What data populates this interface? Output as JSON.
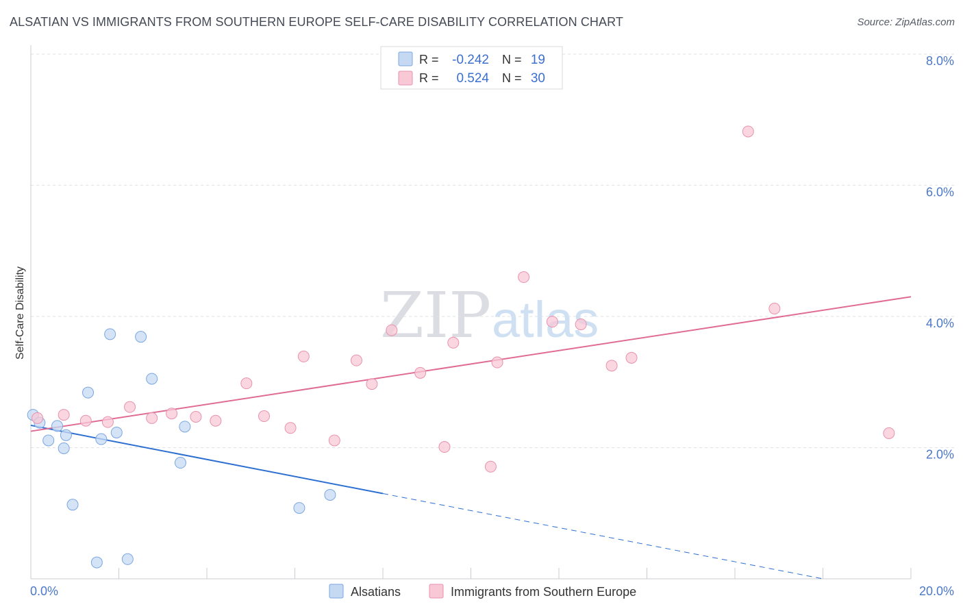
{
  "chart_data": {
    "type": "scatter",
    "title": "ALSATIAN VS IMMIGRANTS FROM SOUTHERN EUROPE SELF-CARE DISABILITY CORRELATION CHART",
    "source": "Source: ZipAtlas.com",
    "ylabel": "Self-Care Disability",
    "xlim": [
      0,
      20
    ],
    "ylim": [
      0,
      8
    ],
    "x_tick_labels": {
      "min": "0.0%",
      "max": "20.0%"
    },
    "y_ticks": [
      {
        "value": 2,
        "label": "2.0%"
      },
      {
        "value": 4,
        "label": "4.0%"
      },
      {
        "value": 6,
        "label": "6.0%"
      },
      {
        "value": 8,
        "label": "8.0%"
      }
    ],
    "watermark": {
      "zip": "ZIP",
      "atlas": "atlas"
    },
    "stats": [
      {
        "r_label": "R =",
        "r_value": "-0.242",
        "n_label": "N =",
        "n_value": "19"
      },
      {
        "r_label": "R =",
        "r_value": "0.524",
        "n_label": "N =",
        "n_value": "30"
      }
    ],
    "series": [
      {
        "name": "Alsatians",
        "color": "#7aa6e0",
        "fill": "#c5d9f3",
        "line_color": "#2c6fd1",
        "trend": {
          "x0": 0,
          "y0": 2.34,
          "x1": 20,
          "y1": -0.26,
          "solid_until": 8
        },
        "points": [
          [
            0.05,
            2.5
          ],
          [
            0.2,
            2.38
          ],
          [
            0.4,
            2.11
          ],
          [
            0.6,
            2.33
          ],
          [
            0.75,
            1.99
          ],
          [
            0.8,
            2.19
          ],
          [
            0.95,
            1.13
          ],
          [
            1.3,
            2.84
          ],
          [
            1.5,
            0.25
          ],
          [
            1.6,
            2.13
          ],
          [
            1.8,
            3.73
          ],
          [
            1.95,
            2.23
          ],
          [
            2.2,
            0.3
          ],
          [
            2.5,
            3.69
          ],
          [
            2.75,
            3.05
          ],
          [
            3.4,
            1.77
          ],
          [
            3.5,
            2.32
          ],
          [
            6.1,
            1.08
          ],
          [
            6.8,
            1.28
          ]
        ]
      },
      {
        "name": "Immigrants from Southern Europe",
        "color": "#e892ad",
        "fill": "#f8c8d7",
        "line_color": "#e06b94",
        "trend": {
          "x0": 0,
          "y0": 2.25,
          "x1": 20,
          "y1": 4.3
        },
        "points": [
          [
            0.15,
            2.45
          ],
          [
            0.75,
            2.5
          ],
          [
            1.25,
            2.41
          ],
          [
            1.75,
            2.39
          ],
          [
            2.25,
            2.62
          ],
          [
            2.75,
            2.45
          ],
          [
            3.2,
            2.52
          ],
          [
            3.75,
            2.47
          ],
          [
            4.2,
            2.41
          ],
          [
            4.9,
            2.98
          ],
          [
            5.3,
            2.48
          ],
          [
            5.9,
            2.3
          ],
          [
            6.2,
            3.39
          ],
          [
            6.9,
            2.11
          ],
          [
            7.4,
            3.33
          ],
          [
            7.75,
            2.97
          ],
          [
            8.2,
            3.79
          ],
          [
            8.85,
            3.14
          ],
          [
            9.4,
            2.01
          ],
          [
            9.6,
            3.6
          ],
          [
            10.45,
            1.71
          ],
          [
            10.6,
            3.3
          ],
          [
            11.2,
            4.6
          ],
          [
            11.85,
            3.92
          ],
          [
            12.5,
            3.88
          ],
          [
            13.2,
            3.25
          ],
          [
            13.65,
            3.37
          ],
          [
            16.3,
            6.82
          ],
          [
            16.9,
            4.12
          ],
          [
            19.5,
            2.22
          ]
        ]
      }
    ]
  }
}
